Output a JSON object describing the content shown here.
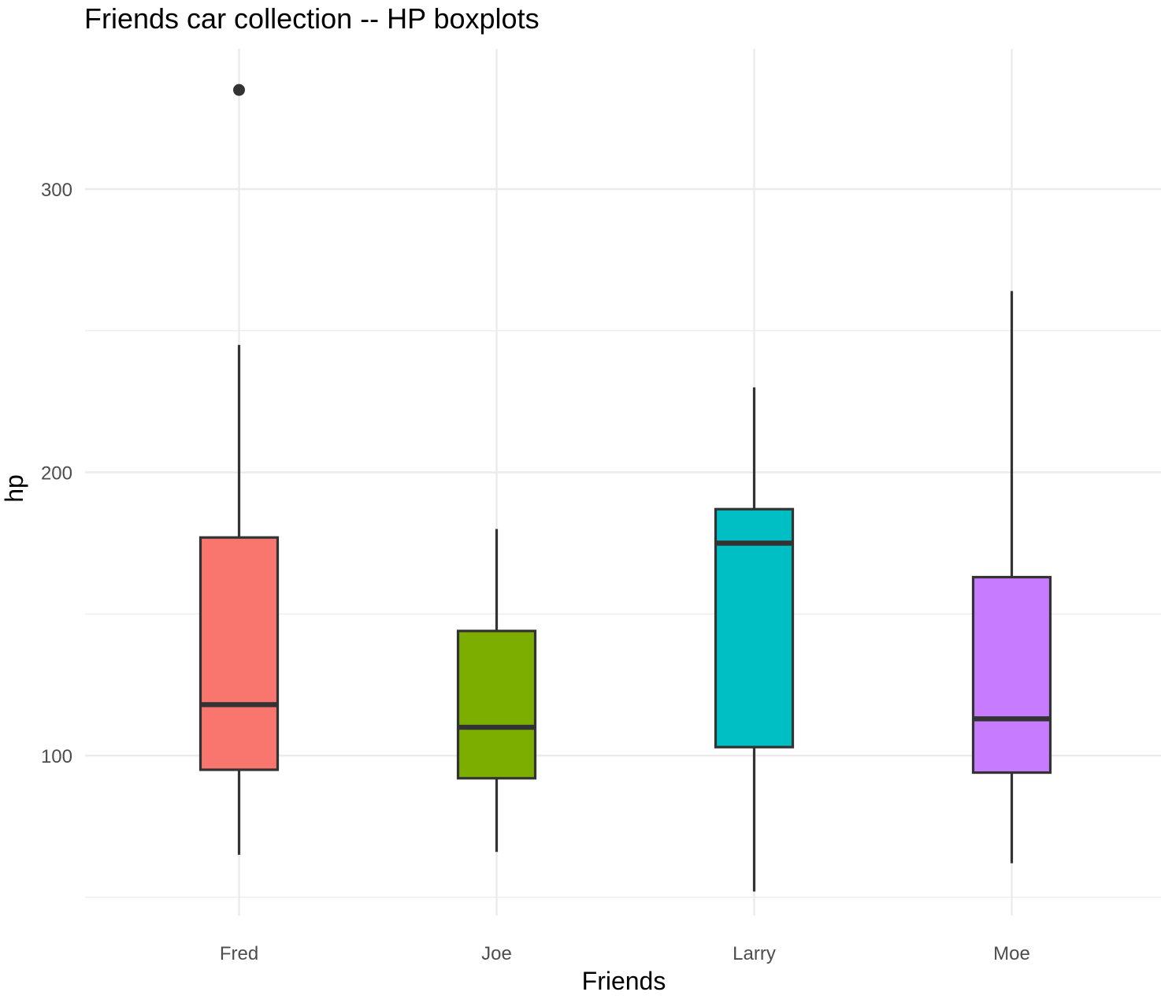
{
  "chart_data": {
    "type": "boxplot",
    "title": "Friends car collection -- HP boxplots",
    "xlabel": "Friends",
    "ylabel": "hp",
    "categories": [
      "Fred",
      "Joe",
      "Larry",
      "Moe"
    ],
    "ylim": [
      40,
      350
    ],
    "yticks": [
      100,
      200,
      300
    ],
    "yticks_minor": [
      50,
      150,
      250
    ],
    "grid": true,
    "legend": "none",
    "colors": {
      "Fred": "#F8766D",
      "Joe": "#7CAE00",
      "Larry": "#00BFC4",
      "Moe": "#C77CFF",
      "outline": "#333333"
    },
    "boxes": [
      {
        "category": "Fred",
        "min": 65,
        "q1": 95,
        "median": 118,
        "q3": 177,
        "max": 245,
        "outliers": [
          335
        ]
      },
      {
        "category": "Joe",
        "min": 66,
        "q1": 92,
        "median": 110,
        "q3": 144,
        "max": 180,
        "outliers": []
      },
      {
        "category": "Larry",
        "min": 52,
        "q1": 103,
        "median": 175,
        "q3": 187,
        "max": 230,
        "outliers": []
      },
      {
        "category": "Moe",
        "min": 62,
        "q1": 94,
        "median": 113,
        "q3": 163,
        "max": 264,
        "outliers": []
      }
    ]
  }
}
